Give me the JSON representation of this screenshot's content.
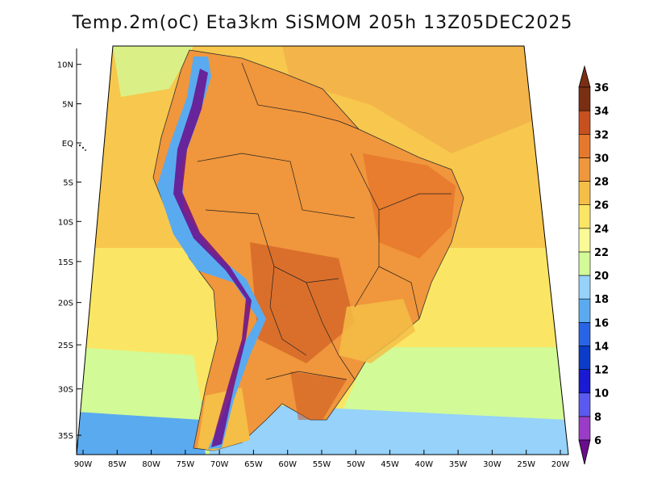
{
  "title": "Temp.2m(oC) Eta3km SiSMOM 205h 13Z05DEC2025",
  "map": {
    "variable": "2 m temperature",
    "units": "oC",
    "region": "South America",
    "lon_range": [
      -90,
      -20
    ],
    "lat_range": [
      -37,
      12
    ],
    "lat_ticks": [
      {
        "value": 10,
        "label": "10N"
      },
      {
        "value": 5,
        "label": "5N"
      },
      {
        "value": 0,
        "label": "EQ"
      },
      {
        "value": -5,
        "label": "5S"
      },
      {
        "value": -10,
        "label": "10S"
      },
      {
        "value": -15,
        "label": "15S"
      },
      {
        "value": -20,
        "label": "20S"
      },
      {
        "value": -25,
        "label": "25S"
      },
      {
        "value": -30,
        "label": "30S"
      },
      {
        "value": -35,
        "label": "35S"
      }
    ],
    "lon_ticks": [
      {
        "value": -90,
        "label": "90W"
      },
      {
        "value": -85,
        "label": "85W"
      },
      {
        "value": -80,
        "label": "80W"
      },
      {
        "value": -75,
        "label": "75W"
      },
      {
        "value": -70,
        "label": "70W"
      },
      {
        "value": -65,
        "label": "65W"
      },
      {
        "value": -60,
        "label": "60W"
      },
      {
        "value": -55,
        "label": "55W"
      },
      {
        "value": -50,
        "label": "50W"
      },
      {
        "value": -45,
        "label": "45W"
      },
      {
        "value": -40,
        "label": "40W"
      },
      {
        "value": -35,
        "label": "35W"
      },
      {
        "value": -30,
        "label": "30W"
      },
      {
        "value": -25,
        "label": "25W"
      },
      {
        "value": -20,
        "label": "20W"
      }
    ]
  },
  "colorbar": {
    "levels": [
      6,
      8,
      10,
      12,
      14,
      16,
      18,
      20,
      22,
      24,
      26,
      28,
      30,
      32,
      34,
      36
    ],
    "colors": [
      "#6a0d8c",
      "#9a3cc8",
      "#5a5af0",
      "#1a1ad2",
      "#0a3cc8",
      "#2864e6",
      "#5aaaf0",
      "#96d2fa",
      "#d2fa96",
      "#fafa96",
      "#fae664",
      "#f5be46",
      "#f0963c",
      "#e6782d",
      "#c8501e",
      "#7a2f14"
    ]
  }
}
